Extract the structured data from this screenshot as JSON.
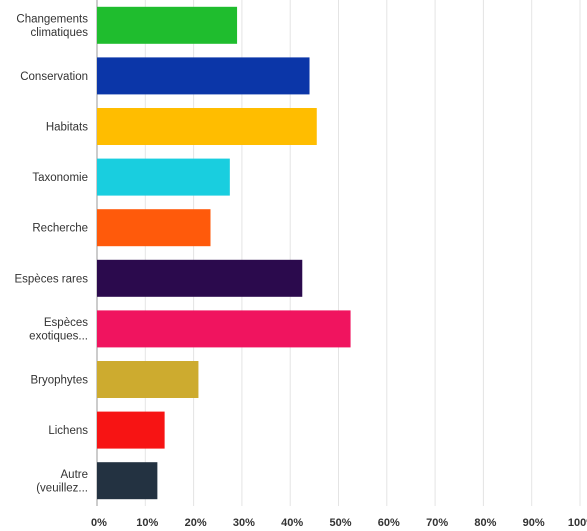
{
  "chart_data": {
    "type": "bar",
    "orientation": "horizontal",
    "categories": [
      [
        "Changements",
        "climatiques"
      ],
      [
        "Conservation"
      ],
      [
        "Habitats"
      ],
      [
        "Taxonomie"
      ],
      [
        "Recherche"
      ],
      [
        "Espèces rares"
      ],
      [
        "Espèces",
        "exotiques..."
      ],
      [
        "Bryophytes"
      ],
      [
        "Lichens"
      ],
      [
        "Autre",
        "(veuillez..."
      ]
    ],
    "values": [
      29,
      44,
      45.5,
      27.5,
      23.5,
      42.5,
      52.5,
      21,
      14,
      12.5
    ],
    "colors": [
      "#1fbd2e",
      "#0b36a8",
      "#ffbd00",
      "#19cedf",
      "#ff5a0b",
      "#2b0a4d",
      "#f0145f",
      "#cdab2f",
      "#f71414",
      "#233241"
    ],
    "xlim": [
      0,
      100
    ],
    "x_ticks": [
      "0%",
      "10%",
      "20%",
      "30%",
      "40%",
      "50%",
      "60%",
      "70%",
      "80%",
      "90%",
      "100%"
    ],
    "grid": true,
    "legend": "none"
  }
}
